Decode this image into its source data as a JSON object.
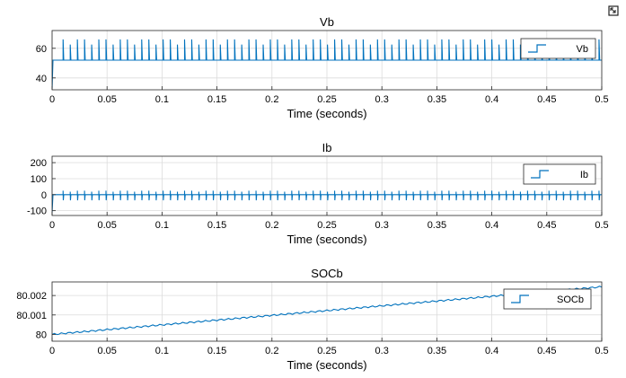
{
  "icons": {
    "expand": "figure-expand-icon"
  },
  "colors": {
    "line": "#0072bd",
    "axes_bg": "#ffffff",
    "grid": "#dcdcdc",
    "frame": "#262626"
  },
  "chart_data": [
    {
      "type": "line",
      "title": "Vb",
      "xlabel": "Time (seconds)",
      "ylabel": "",
      "xlim": [
        0,
        0.5
      ],
      "ylim": [
        32,
        72
      ],
      "xticks": [
        0,
        0.05,
        0.1,
        0.15,
        0.2,
        0.25,
        0.3,
        0.35,
        0.4,
        0.45,
        0.5
      ],
      "xtick_labels": [
        "0",
        "0.05",
        "0.1",
        "0.15",
        "0.2",
        "0.25",
        "0.3",
        "0.35",
        "0.4",
        "0.45",
        "0.5"
      ],
      "yticks": [
        40,
        60
      ],
      "ytick_labels": [
        "40",
        "60"
      ],
      "grid": true,
      "legend_position": "top-right",
      "series": [
        {
          "name": "Vb",
          "baseline": 52,
          "spike_top": 66,
          "start_value": 33,
          "spike_period": 0.0065
        }
      ]
    },
    {
      "type": "line",
      "title": "Ib",
      "xlabel": "Time (seconds)",
      "ylabel": "",
      "xlim": [
        0,
        0.5
      ],
      "ylim": [
        -130,
        240
      ],
      "xticks": [
        0,
        0.05,
        0.1,
        0.15,
        0.2,
        0.25,
        0.3,
        0.35,
        0.4,
        0.45,
        0.5
      ],
      "xtick_labels": [
        "0",
        "0.05",
        "0.1",
        "0.15",
        "0.2",
        "0.25",
        "0.3",
        "0.35",
        "0.4",
        "0.45",
        "0.5"
      ],
      "yticks": [
        -100,
        0,
        100,
        200
      ],
      "ytick_labels": [
        "-100",
        "0",
        "100",
        "200"
      ],
      "grid": true,
      "legend_position": "top-right",
      "series": [
        {
          "name": "Ib",
          "baseline": 0,
          "spike_top": 25,
          "spike_bottom": -35,
          "start_value": -110,
          "spike_period": 0.0065
        }
      ]
    },
    {
      "type": "line",
      "title": "SOCb",
      "xlabel": "Time (seconds)",
      "ylabel": "",
      "xlim": [
        0,
        0.5
      ],
      "ylim": [
        79.99965,
        80.0027
      ],
      "xticks": [
        0,
        0.05,
        0.1,
        0.15,
        0.2,
        0.25,
        0.3,
        0.35,
        0.4,
        0.45,
        0.5
      ],
      "xtick_labels": [
        "0",
        "0.05",
        "0.1",
        "0.15",
        "0.2",
        "0.25",
        "0.3",
        "0.35",
        "0.4",
        "0.45",
        "0.5"
      ],
      "yticks": [
        80,
        80.001,
        80.002
      ],
      "ytick_labels": [
        "80",
        "80.001",
        "80.002"
      ],
      "grid": true,
      "legend_position": "top-right",
      "series": [
        {
          "name": "SOCb",
          "x": [
            0,
            0.5
          ],
          "y": [
            80.0,
            80.00245
          ]
        }
      ]
    }
  ]
}
